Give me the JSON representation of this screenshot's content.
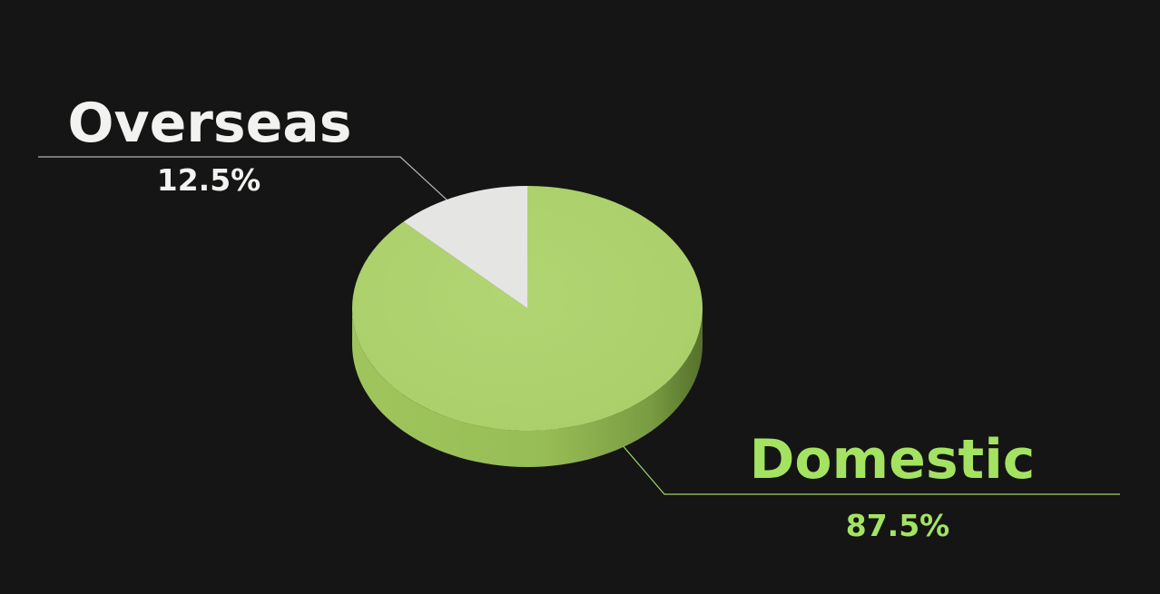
{
  "chart_data": {
    "type": "pie",
    "style": "3d",
    "slices": [
      {
        "name": "Overseas",
        "value": 12.5,
        "label": "12.5%",
        "color": "#e5e5e3",
        "side_color": "#bdbdb9",
        "text_color": "#f2f2f0",
        "pct_color": "#f2f2f0",
        "leader_color": "#b5b5b5"
      },
      {
        "name": "Domestic",
        "value": 87.5,
        "label": "87.5%",
        "color": "#aed26f",
        "side_color": "#88ad4c",
        "text_color": "#a4e361",
        "pct_color": "#a4e361",
        "leader_color": "#9ed765"
      }
    ],
    "title": "",
    "legend": "none"
  },
  "colors": {
    "background": "#151515"
  }
}
